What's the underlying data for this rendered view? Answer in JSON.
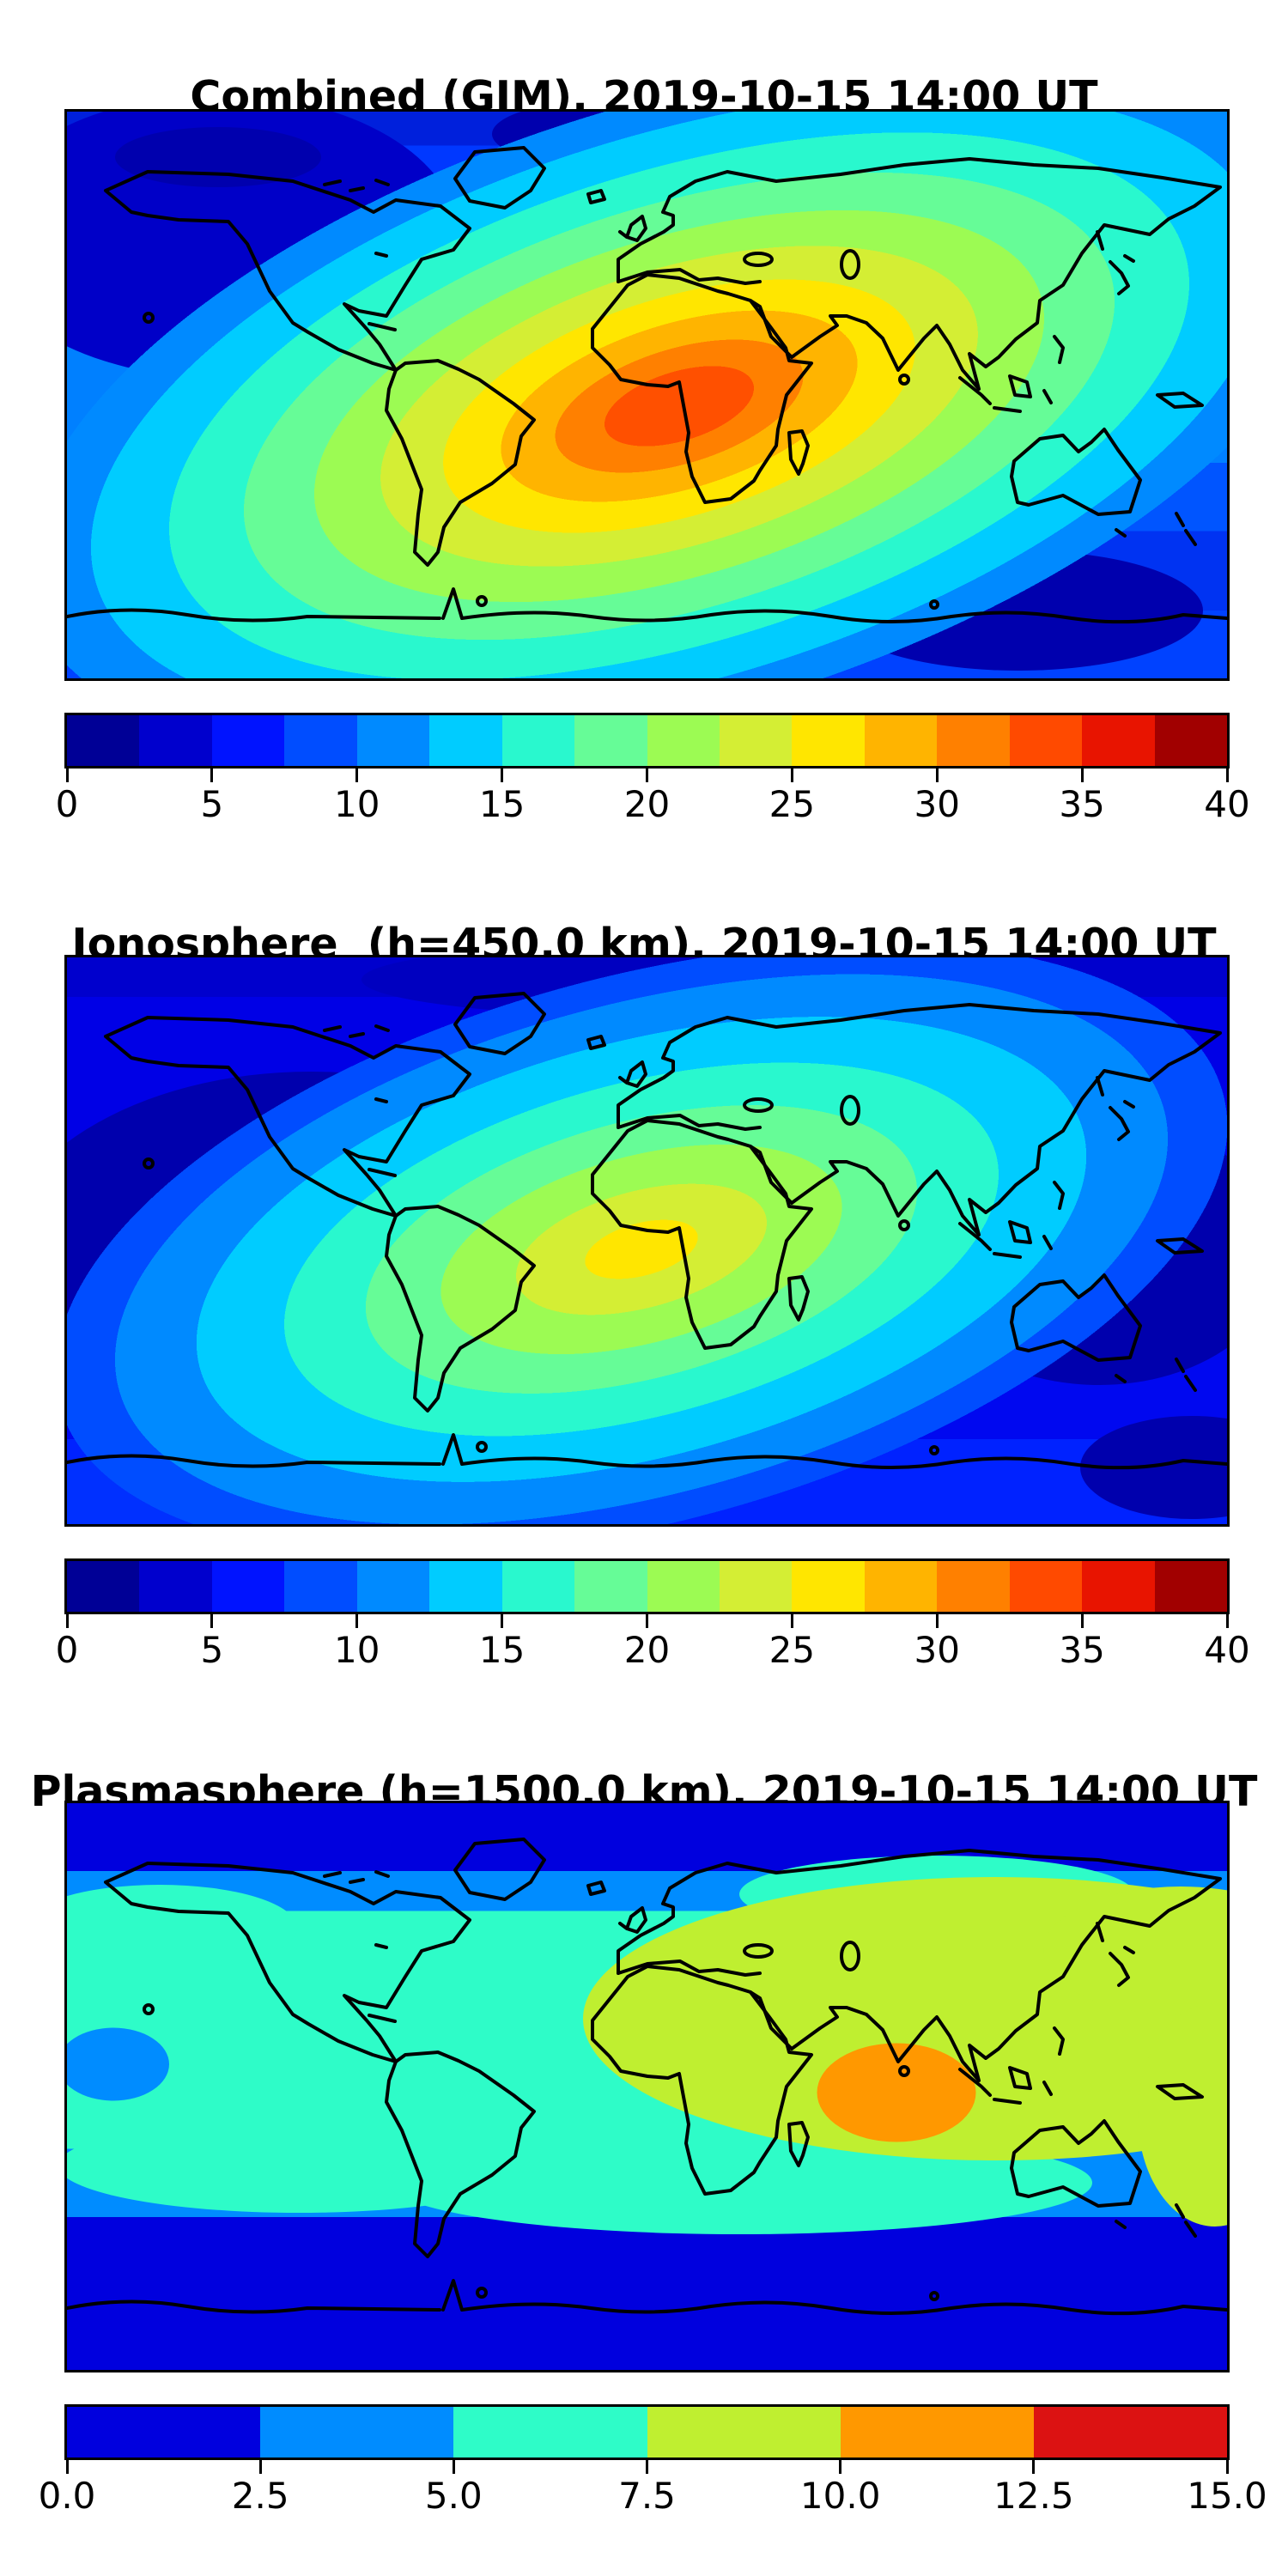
{
  "panels": [
    {
      "id": "combined",
      "title": "Combined (GIM), 2019-10-15 14:00 UT",
      "colorbar": {
        "ticks": [
          "0",
          "5",
          "10",
          "15",
          "20",
          "25",
          "30",
          "35",
          "40"
        ],
        "band_colors": [
          "#000096",
          "#0000cd",
          "#0013ff",
          "#004dff",
          "#008aff",
          "#00ccff",
          "#29f8ce",
          "#66fc97",
          "#9cfb53",
          "#d4ee34",
          "#ffe600",
          "#ffb400",
          "#ff8000",
          "#ff4a00",
          "#e81400",
          "#a10000"
        ]
      }
    },
    {
      "id": "ionosphere",
      "title": "Ionosphere  (h=450.0 km), 2019-10-15 14:00 UT",
      "colorbar": {
        "ticks": [
          "0",
          "5",
          "10",
          "15",
          "20",
          "25",
          "30",
          "35",
          "40"
        ],
        "band_colors": [
          "#000096",
          "#0000cd",
          "#0013ff",
          "#004dff",
          "#008aff",
          "#00ccff",
          "#29f8ce",
          "#66fc97",
          "#9cfb53",
          "#d4ee34",
          "#ffe600",
          "#ffb400",
          "#ff8000",
          "#ff4a00",
          "#e81400",
          "#a10000"
        ]
      }
    },
    {
      "id": "plasmasphere",
      "title": "Plasmasphere (h=1500.0 km), 2019-10-15 14:00 UT",
      "colorbar": {
        "ticks": [
          "0.0",
          "2.5",
          "5.0",
          "7.5",
          "10.0",
          "12.5",
          "15.0"
        ],
        "band_colors": [
          "#0000de",
          "#008cff",
          "#2efcc8",
          "#bfef30",
          "#ff9800",
          "#dc1212"
        ]
      }
    }
  ],
  "chart_data": [
    {
      "type": "heatmap",
      "title": "Combined (GIM), 2019-10-15 14:00 UT",
      "projection": "equirectangular world map, lon -180..180, lat -90..90",
      "value_range": [
        0,
        40
      ],
      "contour_interval": 2.5,
      "colorbar_ticks": [
        0,
        5,
        10,
        15,
        20,
        25,
        30,
        35,
        40
      ],
      "legend_position": "horizontal colorbar below map",
      "peak": {
        "value_estimate": 34,
        "location": "central Africa / Gulf of Guinea, ~5N 10E",
        "band_color": "#ff5000"
      },
      "minimum": {
        "value_estimate": 2,
        "location": "high-latitude patches (Arctic and Antarctic oceans)"
      },
      "pattern": "single elongated equatorial maximum tilted WSW-ENE from Brazil across Africa toward India, concentric contour rings decreasing to ~2.5 at poles"
    },
    {
      "type": "heatmap",
      "title": "Ionosphere  (h=450.0 km), 2019-10-15 14:00 UT",
      "projection": "equirectangular world map, lon -180..180, lat -90..90",
      "value_range": [
        0,
        40
      ],
      "contour_interval": 2.5,
      "colorbar_ticks": [
        0,
        5,
        10,
        15,
        20,
        25,
        30,
        35,
        40
      ],
      "legend_position": "horizontal colorbar below map",
      "peak": {
        "value_estimate": 26,
        "location": "west-central Africa coast, ~0N 8E",
        "band_color": "#ffe600"
      },
      "minimum": {
        "value_estimate": 2,
        "location": "central Pacific and south Indian Ocean dark-blue patches"
      },
      "pattern": "weaker equatorial maximum over Africa with green/cyan rings, large <2.5 minima over Pacific and Indian Ocean"
    },
    {
      "type": "heatmap",
      "title": "Plasmasphere (h=1500.0 km), 2019-10-15 14:00 UT",
      "projection": "equirectangular world map, lon -180..180, lat -90..90",
      "value_range": [
        0,
        15
      ],
      "contour_interval": 2.5,
      "colorbar_ticks": [
        0.0,
        2.5,
        5.0,
        7.5,
        10.0,
        12.5,
        15.0
      ],
      "legend_position": "horizontal colorbar below map",
      "peak": {
        "value_estimate": 11,
        "location": "Indian Ocean south of India, ~5S 80E",
        "band_color": "#ff9800"
      },
      "minimum": {
        "value_estimate": 1,
        "location": "polar caps (top and bottom of map)"
      },
      "pattern": "broad 5-7.5 equatorial belt across whole map, 7.5-10 region over India/SE Asia/Australia north with small 10-12.5 core, <2.5 at high latitudes"
    }
  ]
}
